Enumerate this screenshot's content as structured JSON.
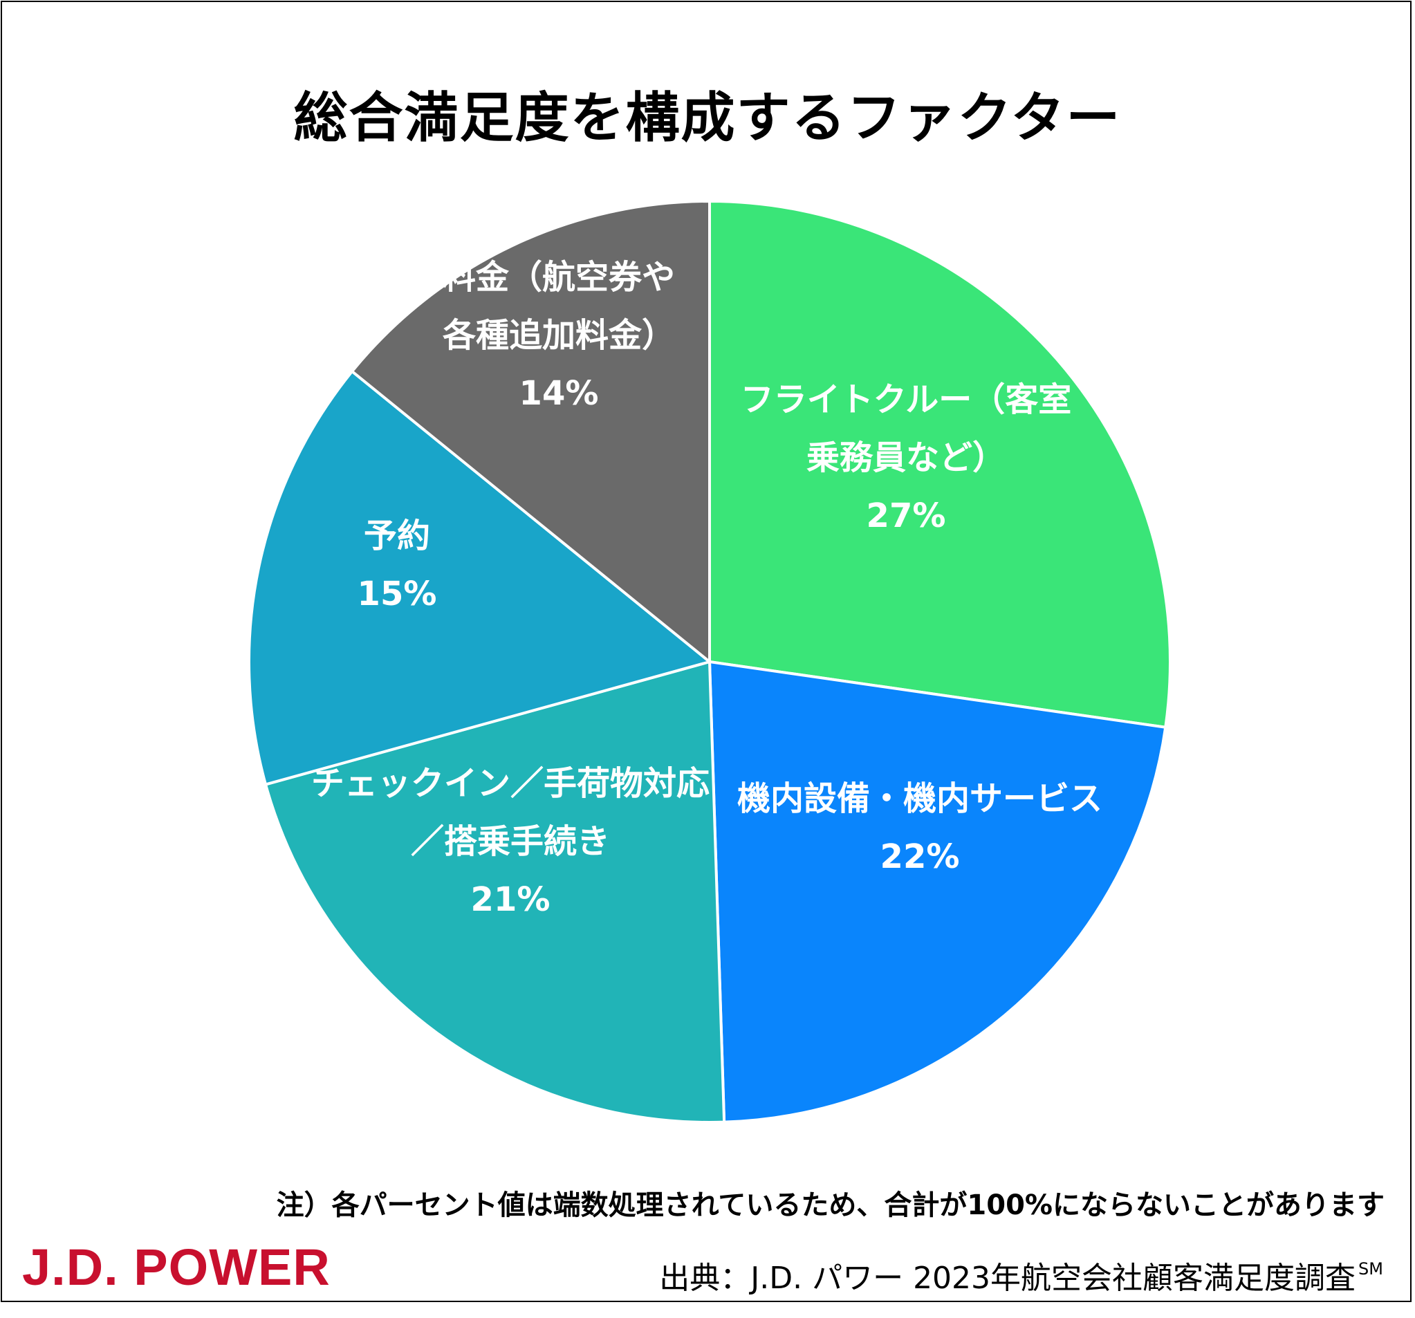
{
  "title": "総合満足度を構成するファクター",
  "chart_data": {
    "type": "pie",
    "title": "総合満足度を構成するファクター",
    "slices": [
      {
        "label_lines": [
          "フライトクルー（客室",
          "乗務員など）"
        ],
        "value": 27,
        "value_label": "27%",
        "color": "#3ae578"
      },
      {
        "label_lines": [
          "機内設備・機内サービス"
        ],
        "value": 22,
        "value_label": "22%",
        "color": "#0a85fc"
      },
      {
        "label_lines": [
          "チェックイン／手荷物対応",
          "／搭乗手続き"
        ],
        "value": 21,
        "value_label": "21%",
        "color": "#21b4b7"
      },
      {
        "label_lines": [
          "予約"
        ],
        "value": 15,
        "value_label": "15%",
        "color": "#19a5c9"
      },
      {
        "label_lines": [
          "料金（航空券や",
          "各種追加料金）"
        ],
        "value": 14,
        "value_label": "14%",
        "color": "#6a6a6a"
      }
    ],
    "start_angle_deg": 0,
    "direction": "clockwise",
    "slice_border_color": "#ffffff"
  },
  "footer": {
    "note": "注）各パーセント値は端数処理されているため、合計が100%にならないことがあります",
    "logo_text": "J.D. POWER",
    "source": "出典：J.D. パワー 2023年航空会社顧客満足度調査",
    "source_mark": "SM"
  },
  "colors": {
    "logo": "#c8102e"
  }
}
